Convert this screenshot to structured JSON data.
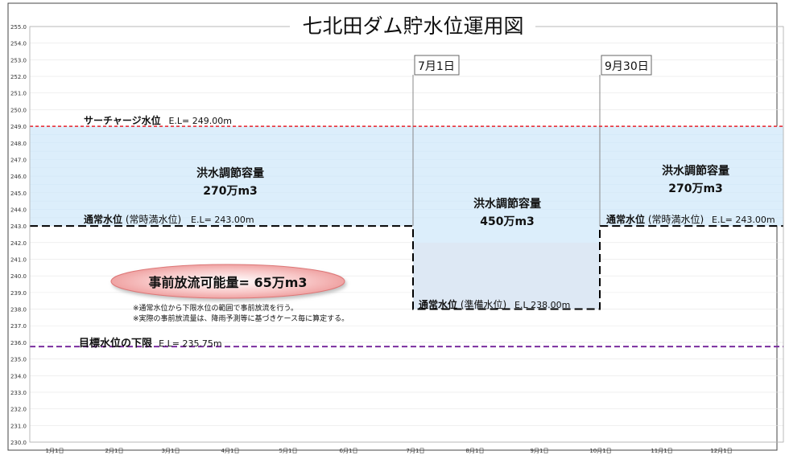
{
  "chart_data": {
    "type": "area",
    "title": "七北田ダム貯水位運用図",
    "xlabel": "",
    "ylabel": "",
    "ylim": [
      230.0,
      255.0
    ],
    "y_ticks": [
      "230.0",
      "231.0",
      "232.0",
      "233.0",
      "234.0",
      "235.0",
      "236.0",
      "237.0",
      "238.0",
      "239.0",
      "240.0",
      "241.0",
      "242.0",
      "243.0",
      "244.0",
      "245.0",
      "246.0",
      "247.0",
      "248.0",
      "249.0",
      "250.0",
      "251.0",
      "252.0",
      "253.0",
      "254.0",
      "255.0"
    ],
    "x_ticks": [
      "1月1日",
      "2月1日",
      "3月1日",
      "4月1日",
      "5月1日",
      "6月1日",
      "7月1日",
      "8月1日",
      "9月1日",
      "10月1日",
      "11月1日",
      "12月1日"
    ],
    "grid": true,
    "reference_lines": [
      {
        "label": "サーチャージ水位",
        "detail": "E.L= 249.00m",
        "value": 249.0,
        "color": "#e8202a"
      },
      {
        "label": "目標水位の下限",
        "detail": "E.L= 235.75m",
        "value": 235.75,
        "color": "#7a2d9e"
      }
    ],
    "normal_water_level": {
      "value": 243.0,
      "flood_season_value": 238.0
    },
    "flood_season": {
      "start": "7月1日",
      "end": "9月30日"
    },
    "annotations": {
      "normal_left_label": "通常水位",
      "normal_left_paren": "(常時満水位)",
      "normal_left_detail": "E.L= 243.00m",
      "normal_right_label": "通常水位",
      "normal_right_paren": "(常時満水位)",
      "normal_right_detail": "E.L= 243.00m",
      "flood_low_label": "通常水位",
      "flood_low_paren": "(準備水位)",
      "flood_low_detail": "E.L 238.00m",
      "left_capacity_title": "洪水調節容量",
      "left_capacity_value": "270万m3",
      "mid_capacity_title": "洪水調節容量",
      "mid_capacity_value": "450万m3",
      "right_capacity_title": "洪水調節容量",
      "right_capacity_value": "270万m3",
      "prior_release": "事前放流可能量= 65万m3",
      "note1": "※通常水位から下限水位の範囲で事前放流を行う。",
      "note2": "※実際の事前放流量は、降雨予測等に基づきケース毎に算定する。"
    },
    "colors": {
      "capacity_fill": "#dceefb",
      "capacity_fill_low": "#dde8f4",
      "normal_line": "#000000",
      "ellipse": "#f2a2a2"
    }
  }
}
